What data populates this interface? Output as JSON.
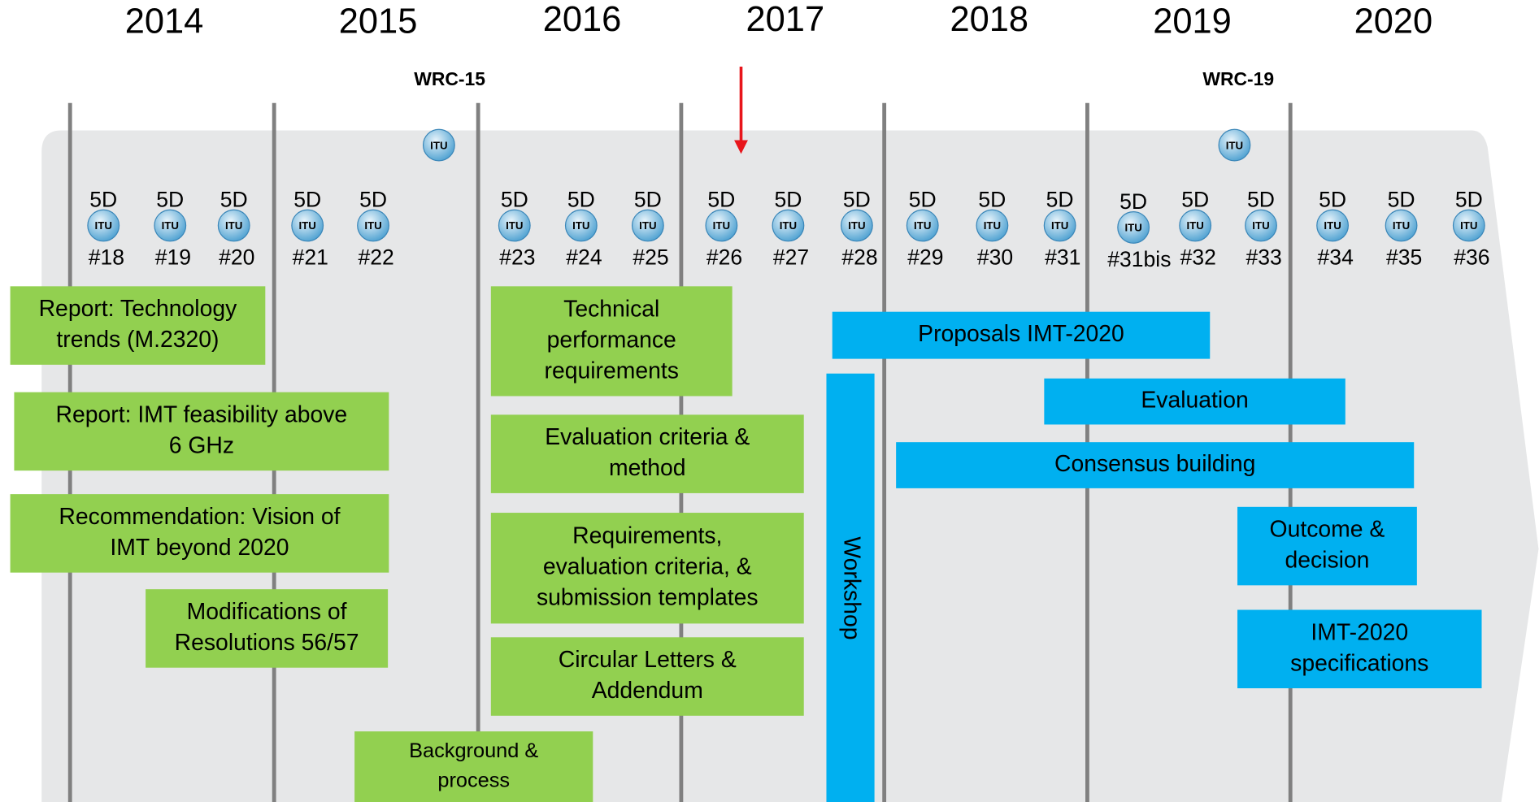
{
  "years": [
    "2014",
    "2015",
    "2016",
    "2017",
    "2018",
    "2019",
    "2020"
  ],
  "wrc": [
    "WRC-15",
    "WRC-19"
  ],
  "icon_label": "ITU",
  "meetings": [
    {
      "body": "5D",
      "number": "#18"
    },
    {
      "body": "5D",
      "number": "#19"
    },
    {
      "body": "5D",
      "number": "#20"
    },
    {
      "body": "5D",
      "number": "#21"
    },
    {
      "body": "5D",
      "number": "#22"
    },
    {
      "body": "5D",
      "number": "#23"
    },
    {
      "body": "5D",
      "number": "#24"
    },
    {
      "body": "5D",
      "number": "#25"
    },
    {
      "body": "5D",
      "number": "#26"
    },
    {
      "body": "5D",
      "number": "#27"
    },
    {
      "body": "5D",
      "number": "#28"
    },
    {
      "body": "5D",
      "number": "#29"
    },
    {
      "body": "5D",
      "number": "#30"
    },
    {
      "body": "5D",
      "number": "#31"
    },
    {
      "body": "5D",
      "number": "#31bis"
    },
    {
      "body": "5D",
      "number": "#32"
    },
    {
      "body": "5D",
      "number": "#33"
    },
    {
      "body": "5D",
      "number": "#34"
    },
    {
      "body": "5D",
      "number": "#35"
    },
    {
      "body": "5D",
      "number": "#36"
    }
  ],
  "boxes": [
    {
      "lines": [
        "Report: Technology",
        "trends (M.2320)"
      ]
    },
    {
      "lines": [
        "Report: IMT feasibility  above",
        "6 GHz"
      ]
    },
    {
      "lines": [
        "Recommendation: Vision of",
        "IMT beyond 2020"
      ]
    },
    {
      "lines": [
        "Modifications of",
        "Resolutions 56/57"
      ]
    },
    {
      "lines": [
        "Technical",
        "performance",
        "requirements"
      ]
    },
    {
      "lines": [
        "Evaluation criteria &",
        "method"
      ]
    },
    {
      "lines": [
        "Requirements,",
        "evaluation criteria, &",
        "submission templates"
      ]
    },
    {
      "lines": [
        "Circular Letters &",
        "Addendum"
      ]
    },
    {
      "lines": [
        "Background &",
        "process"
      ]
    },
    {
      "lines": [
        "Proposals IMT-2020"
      ]
    },
    {
      "lines": [
        "Evaluation"
      ]
    },
    {
      "lines": [
        "Consensus building"
      ]
    },
    {
      "lines": [
        "Outcome &",
        "decision"
      ]
    },
    {
      "lines": [
        "IMT-2020",
        "specifications"
      ]
    },
    {
      "lines": [
        "Workshop"
      ]
    }
  ]
}
